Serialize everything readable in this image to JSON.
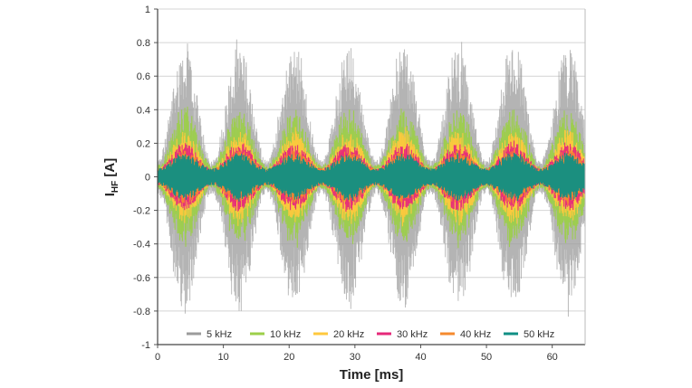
{
  "chart_data": {
    "type": "line",
    "xlabel": "Time [ms]",
    "ylabel_main": "I",
    "ylabel_sub": "HF",
    "ylabel_unit": " [A]",
    "xlim": [
      0,
      65
    ],
    "ylim": [
      -1,
      1
    ],
    "x_ticks": [
      "0",
      "10",
      "20",
      "30",
      "40",
      "50",
      "60"
    ],
    "y_ticks": [
      "1",
      "0.8",
      "0.6",
      "0.4",
      "0.2",
      "0",
      "-0.2",
      "-0.4",
      "-0.6",
      "-0.8",
      "-1"
    ],
    "grid": "horizontal",
    "legend_position": "bottom-inside",
    "description": "High-frequency current waveforms with envelope modulated at 100 Hz (period ~8.3 ms); amplitude decreases with switching frequency.",
    "envelope_period_ms": 8.33,
    "series": [
      {
        "name": "5 kHz",
        "color": "#9b9b9b",
        "peak_max": 0.85,
        "trough_min": 0.1
      },
      {
        "name": "10 kHz",
        "color": "#9ccf4a",
        "peak_max": 0.44,
        "trough_min": 0.07
      },
      {
        "name": "20 kHz",
        "color": "#ffc83d",
        "peak_max": 0.3,
        "trough_min": 0.05
      },
      {
        "name": "30 kHz",
        "color": "#e6287a",
        "peak_max": 0.22,
        "trough_min": 0.05
      },
      {
        "name": "40 kHz",
        "color": "#f58a2e",
        "peak_max": 0.17,
        "trough_min": 0.05
      },
      {
        "name": "50 kHz",
        "color": "#0f8f84",
        "peak_max": 0.15,
        "trough_min": 0.05
      }
    ]
  }
}
